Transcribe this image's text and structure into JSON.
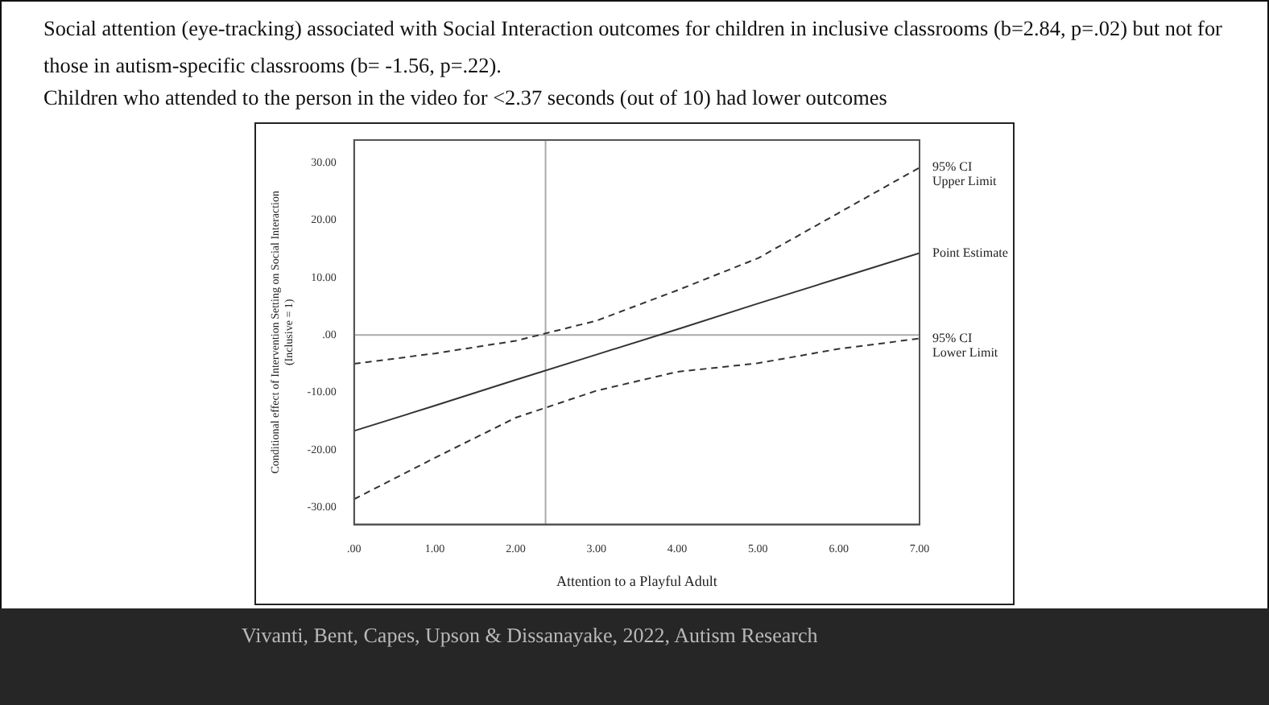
{
  "chart_data": {
    "type": "line",
    "title": "Social attention (eye-tracking) associated with Social Interaction outcomes for children in inclusive classrooms (b=2.84, p=.02) but not for those in autism-specific classrooms (b= -1.56, p=.22).",
    "subtitle": "Children who attended to the person in the video for <2.37 seconds (out of 10) had lower outcomes",
    "xlabel": "Attention to a Playful Adult",
    "ylabel": "Conditional effect of Intervention Setting on Social Interaction\n(Inclusive = 1)",
    "annotations": [
      "Vivanti, Bent, Capes, Upson & Dissanayake, 2022, Autism Research"
    ],
    "x": [
      0,
      1,
      2,
      3,
      4,
      5,
      6,
      7
    ],
    "series": [
      {
        "name": "95% CI\nUpper Limit",
        "color": "#333333",
        "line_style": "dashed",
        "values": [
          -5.0,
          -3.2,
          -1.0,
          2.5,
          7.8,
          13.4,
          21.3,
          29.2
        ]
      },
      {
        "name": "Point Estimate",
        "color": "#333333",
        "line_style": "solid",
        "values": [
          -16.7,
          -12.3,
          -7.8,
          -3.4,
          1.0,
          5.5,
          9.9,
          14.3
        ]
      },
      {
        "name": "95% CI\nLower Limit",
        "color": "#333333",
        "line_style": "dashed",
        "values": [
          -28.6,
          -21.4,
          -14.4,
          -9.7,
          -6.4,
          -4.9,
          -2.4,
          -0.6
        ]
      }
    ],
    "xlim": [
      0,
      7
    ],
    "xticks": [
      {
        "value": 0,
        "label": ".00"
      },
      {
        "value": 1,
        "label": "1.00"
      },
      {
        "value": 2,
        "label": "2.00"
      },
      {
        "value": 3,
        "label": "3.00"
      },
      {
        "value": 4,
        "label": "4.00"
      },
      {
        "value": 5,
        "label": "5.00"
      },
      {
        "value": 6,
        "label": "6.00"
      },
      {
        "value": 7,
        "label": "7.00"
      }
    ],
    "ylim": [
      -33,
      34
    ],
    "yticks": [
      {
        "value": -30,
        "label": "-30.00"
      },
      {
        "value": -20,
        "label": "-20.00"
      },
      {
        "value": -10,
        "label": "-10.00"
      },
      {
        "value": 0,
        "label": ".00"
      },
      {
        "value": 10,
        "label": "10.00"
      },
      {
        "value": 20,
        "label": "20.00"
      },
      {
        "value": 30,
        "label": "30.00"
      }
    ],
    "ref_lines": [
      {
        "axis": "x",
        "value": 2.37,
        "color": "#aaaaaa"
      },
      {
        "axis": "y",
        "value": 0,
        "color": "#aaaaaa"
      }
    ],
    "grid": false,
    "legend": false,
    "marker": "none"
  }
}
